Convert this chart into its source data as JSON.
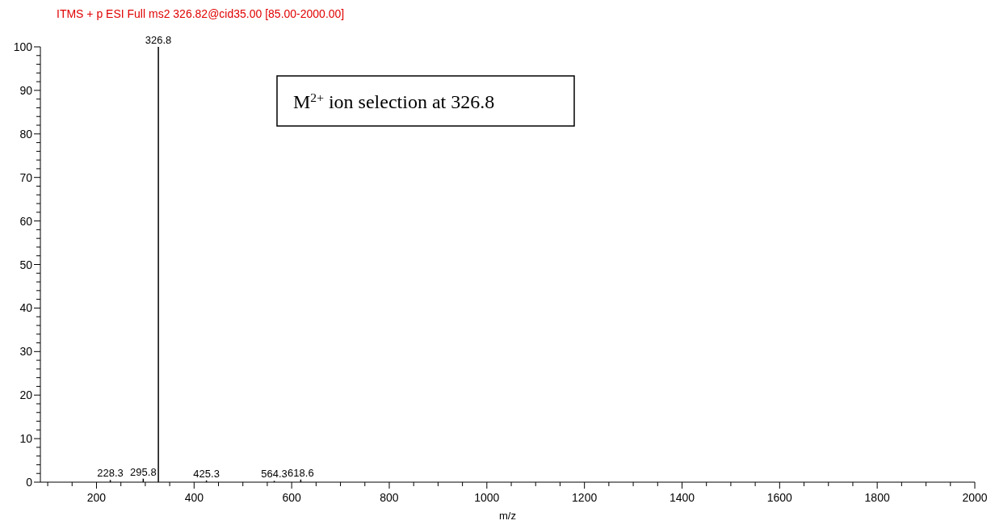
{
  "chart_data": {
    "type": "bar",
    "title": "ITMS + p ESI Full ms2 326.82@cid35.00 [85.00-2000.00]",
    "xlabel": "m/z",
    "x": [
      228.3,
      295.8,
      326.8,
      425.3,
      564.3,
      618.6
    ],
    "values": [
      0.5,
      0.8,
      100,
      0.4,
      0.3,
      0.6
    ],
    "color": "#000000",
    "annotations": [
      "M$^{2+}$ ion selection at 326.8",
      {
        "text": "228.3",
        "x": 228.3,
        "y": 0.5
      },
      {
        "text": "295.8",
        "x": 295.8,
        "y": 0.8
      },
      {
        "text": "326.8",
        "x": 326.8,
        "y": 100
      },
      {
        "text": "425.3",
        "x": 425.3,
        "y": 0.4
      },
      {
        "text": "564.3",
        "x": 564.3,
        "y": 0.3
      },
      {
        "text": "618.6",
        "x": 618.6,
        "y": 0.6
      }
    ],
    "xlim": [
      85,
      2000
    ],
    "xticks": [
      {
        "value": 100,
        "label": null
      },
      {
        "value": 150,
        "label": null
      },
      200,
      {
        "value": 250,
        "label": null
      },
      {
        "value": 300,
        "label": null
      },
      {
        "value": 350,
        "label": null
      },
      400,
      {
        "value": 450,
        "label": null
      },
      {
        "value": 500,
        "label": null
      },
      {
        "value": 550,
        "label": null
      },
      600,
      {
        "value": 650,
        "label": null
      },
      {
        "value": 700,
        "label": null
      },
      {
        "value": 750,
        "label": null
      },
      800,
      {
        "value": 850,
        "label": null
      },
      {
        "value": 900,
        "label": null
      },
      {
        "value": 950,
        "label": null
      },
      1000,
      {
        "value": 1050,
        "label": null
      },
      {
        "value": 1100,
        "label": null
      },
      {
        "value": 1150,
        "label": null
      },
      1200,
      {
        "value": 1250,
        "label": null
      },
      {
        "value": 1300,
        "label": null
      },
      {
        "value": 1350,
        "label": null
      },
      1400,
      {
        "value": 1450,
        "label": null
      },
      {
        "value": 1500,
        "label": null
      },
      {
        "value": 1550,
        "label": null
      },
      1600,
      {
        "value": 1650,
        "label": null
      },
      {
        "value": 1700,
        "label": null
      },
      {
        "value": 1750,
        "label": null
      },
      1800,
      {
        "value": 1850,
        "label": null
      },
      {
        "value": 1900,
        "label": null
      },
      {
        "value": 1950,
        "label": null
      },
      2000
    ],
    "ylim": [
      0,
      100
    ],
    "yticks": [
      0,
      {
        "value": 2,
        "label": null
      },
      {
        "value": 4,
        "label": null
      },
      {
        "value": 6,
        "label": null
      },
      {
        "value": 8,
        "label": null
      },
      10,
      {
        "value": 12,
        "label": null
      },
      {
        "value": 14,
        "label": null
      },
      {
        "value": 16,
        "label": null
      },
      {
        "value": 18,
        "label": null
      },
      20,
      {
        "value": 22,
        "label": null
      },
      {
        "value": 24,
        "label": null
      },
      {
        "value": 26,
        "label": null
      },
      {
        "value": 28,
        "label": null
      },
      30,
      {
        "value": 32,
        "label": null
      },
      {
        "value": 34,
        "label": null
      },
      {
        "value": 36,
        "label": null
      },
      {
        "value": 38,
        "label": null
      },
      40,
      {
        "value": 42,
        "label": null
      },
      {
        "value": 44,
        "label": null
      },
      {
        "value": 46,
        "label": null
      },
      {
        "value": 48,
        "label": null
      },
      50,
      {
        "value": 52,
        "label": null
      },
      {
        "value": 54,
        "label": null
      },
      {
        "value": 56,
        "label": null
      },
      {
        "value": 58,
        "label": null
      },
      60,
      {
        "value": 62,
        "label": null
      },
      {
        "value": 64,
        "label": null
      },
      {
        "value": 66,
        "label": null
      },
      {
        "value": 68,
        "label": null
      },
      70,
      {
        "value": 72,
        "label": null
      },
      {
        "value": 74,
        "label": null
      },
      {
        "value": 76,
        "label": null
      },
      {
        "value": 78,
        "label": null
      },
      80,
      {
        "value": 82,
        "label": null
      },
      {
        "value": 84,
        "label": null
      },
      {
        "value": 86,
        "label": null
      },
      {
        "value": 88,
        "label": null
      },
      90,
      {
        "value": 92,
        "label": null
      },
      {
        "value": 94,
        "label": null
      },
      {
        "value": 96,
        "label": null
      },
      {
        "value": 98,
        "label": null
      },
      100
    ],
    "grid": false
  }
}
